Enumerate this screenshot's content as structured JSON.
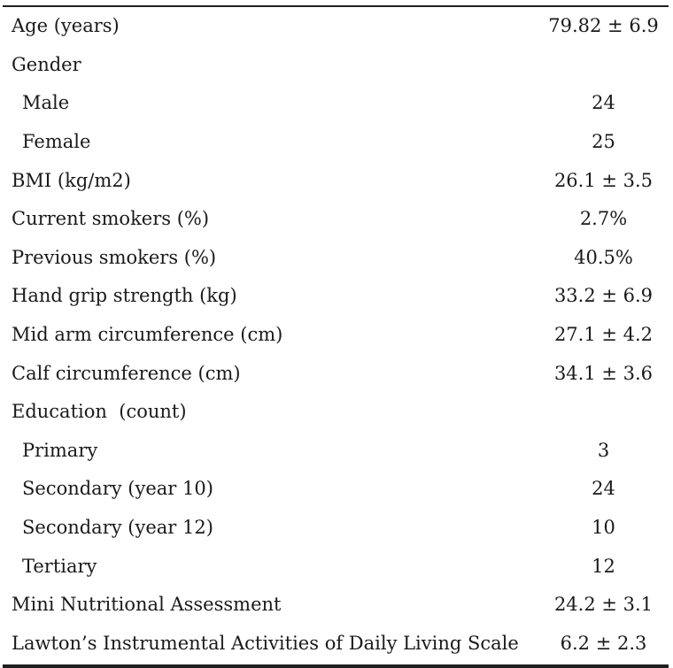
{
  "rows": [
    {
      "label": "Age (years)",
      "value": "79.82 ± 6.9",
      "indent": false
    },
    {
      "label": "Gender",
      "value": "",
      "indent": false
    },
    {
      "label": "Male",
      "value": "24",
      "indent": true
    },
    {
      "label": "Female",
      "value": "25",
      "indent": true
    },
    {
      "label": "BMI (kg/m2)",
      "value": "26.1 ± 3.5",
      "indent": false
    },
    {
      "label": "Current smokers (%)",
      "value": "2.7%",
      "indent": false
    },
    {
      "label": "Previous smokers (%)",
      "value": "40.5%",
      "indent": false
    },
    {
      "label": "Hand grip strength (kg)",
      "value": "33.2 ± 6.9",
      "indent": false
    },
    {
      "label": "Mid arm circumference (cm)",
      "value": "27.1 ± 4.2",
      "indent": false
    },
    {
      "label": "Calf circumference (cm)",
      "value": "34.1 ± 3.6",
      "indent": false
    },
    {
      "label": "Education  (count)",
      "value": "",
      "indent": false
    },
    {
      "label": "Primary",
      "value": "3",
      "indent": true
    },
    {
      "label": "Secondary (year 10)",
      "value": "24",
      "indent": true
    },
    {
      "label": "Secondary (year 12)",
      "value": "10",
      "indent": true
    },
    {
      "label": "Tertiary",
      "value": "12",
      "indent": true
    },
    {
      "label": "Mini Nutritional Assessment",
      "value": "24.2 ± 3.1",
      "indent": false
    },
    {
      "label": "Lawton’s Instrumental Activities of Daily Living Scale",
      "value": "6.2 ± 2.3",
      "indent": false
    }
  ]
}
